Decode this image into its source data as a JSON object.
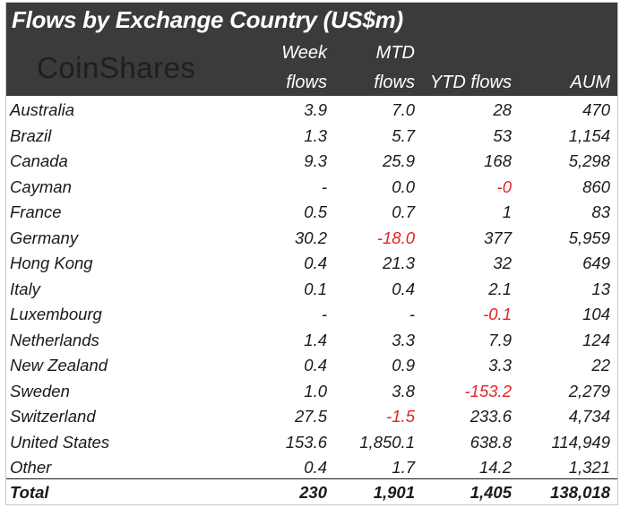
{
  "title": "Flows by Exchange Country (US$m)",
  "logo_text": "CoinShares",
  "columns": {
    "week_line1": "Week",
    "week_line2": "flows",
    "mtd_line1": "MTD",
    "mtd_line2": "flows",
    "ytd": "YTD flows",
    "aum": "AUM"
  },
  "rows": [
    {
      "country": "Australia",
      "week": "3.9",
      "mtd": "7.0",
      "ytd": "28",
      "aum": "470"
    },
    {
      "country": "Brazil",
      "week": "1.3",
      "mtd": "5.7",
      "ytd": "53",
      "aum": "1,154"
    },
    {
      "country": "Canada",
      "week": "9.3",
      "mtd": "25.9",
      "ytd": "168",
      "aum": "5,298"
    },
    {
      "country": "Cayman",
      "week": "-",
      "mtd": "0.0",
      "ytd": "-0",
      "aum": "860"
    },
    {
      "country": "France",
      "week": "0.5",
      "mtd": "0.7",
      "ytd": "1",
      "aum": "83"
    },
    {
      "country": "Germany",
      "week": "30.2",
      "mtd": "-18.0",
      "ytd": "377",
      "aum": "5,959"
    },
    {
      "country": "Hong Kong",
      "week": "0.4",
      "mtd": "21.3",
      "ytd": "32",
      "aum": "649"
    },
    {
      "country": "Italy",
      "week": "0.1",
      "mtd": "0.4",
      "ytd": "2.1",
      "aum": "13"
    },
    {
      "country": "Luxembourg",
      "week": "-",
      "mtd": "-",
      "ytd": "-0.1",
      "aum": "104"
    },
    {
      "country": "Netherlands",
      "week": "1.4",
      "mtd": "3.3",
      "ytd": "7.9",
      "aum": "124"
    },
    {
      "country": "New Zealand",
      "week": "0.4",
      "mtd": "0.9",
      "ytd": "3.3",
      "aum": "22"
    },
    {
      "country": "Sweden",
      "week": "1.0",
      "mtd": "3.8",
      "ytd": "-153.2",
      "aum": "2,279"
    },
    {
      "country": "Switzerland",
      "week": "27.5",
      "mtd": "-1.5",
      "ytd": "233.6",
      "aum": "4,734"
    },
    {
      "country": "United States",
      "week": "153.6",
      "mtd": "1,850.1",
      "ytd": "638.8",
      "aum": "114,949"
    },
    {
      "country": "Other",
      "week": "0.4",
      "mtd": "1.7",
      "ytd": "14.2",
      "aum": "1,321"
    }
  ],
  "total": {
    "label": "Total",
    "week": "230",
    "mtd": "1,901",
    "ytd": "1,405",
    "aum": "138,018"
  },
  "colors": {
    "header_bg": "#3b3b3b",
    "header_text": "#ffffff",
    "negative": "#e02424",
    "text": "#1a1a1a"
  }
}
